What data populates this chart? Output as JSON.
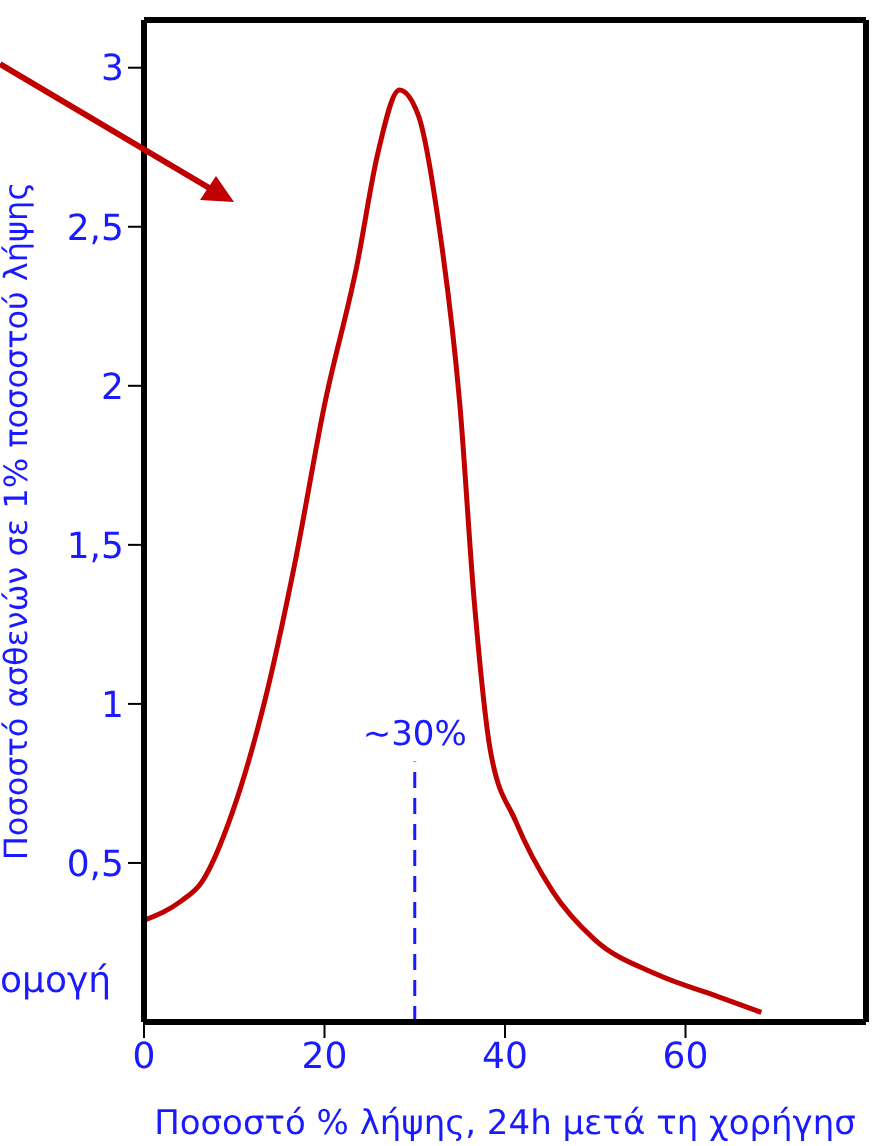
{
  "chart_data": {
    "type": "line",
    "xlabel": "Ποσοστό % λήψης, 24h μετά τη χορήγησ",
    "ylabel": "Ποσοστό ασθενών σε 1% ποσοστού λήψης",
    "x": [
      0,
      4.1,
      6.4,
      9.8,
      13.3,
      16.7,
      20,
      23.6,
      25.9,
      28.3,
      30.4,
      32.7,
      35,
      36.6,
      38.4,
      41.2,
      45.3,
      49.9,
      56.8,
      63.6,
      68.4
    ],
    "series": [
      {
        "color": "#c00000",
        "values": [
          0.32,
          0.38,
          0.44,
          0.66,
          1.0,
          1.44,
          1.94,
          2.38,
          2.73,
          2.93,
          2.85,
          2.5,
          1.94,
          1.32,
          0.85,
          0.63,
          0.41,
          0.26,
          0.15,
          0.08,
          0.03
        ]
      }
    ],
    "xlim": [
      0,
      80
    ],
    "xticks": [
      0,
      20,
      40,
      60
    ],
    "ylim": [
      0,
      3.15
    ],
    "yticks": [
      {
        "value": 0.5,
        "label": "0,5"
      },
      1,
      {
        "value": 1.5,
        "label": "1,5"
      },
      2,
      {
        "value": 2.5,
        "label": "2,5"
      },
      3
    ],
    "ref_lines": [
      {
        "axis": "x",
        "value": 30,
        "label": "~30%",
        "color": "#1a1aff",
        "line_style": "dashed"
      }
    ],
    "annotations": [
      "ομογή"
    ],
    "grid": false,
    "legend": false,
    "marker": "none",
    "line_style": "solid"
  }
}
